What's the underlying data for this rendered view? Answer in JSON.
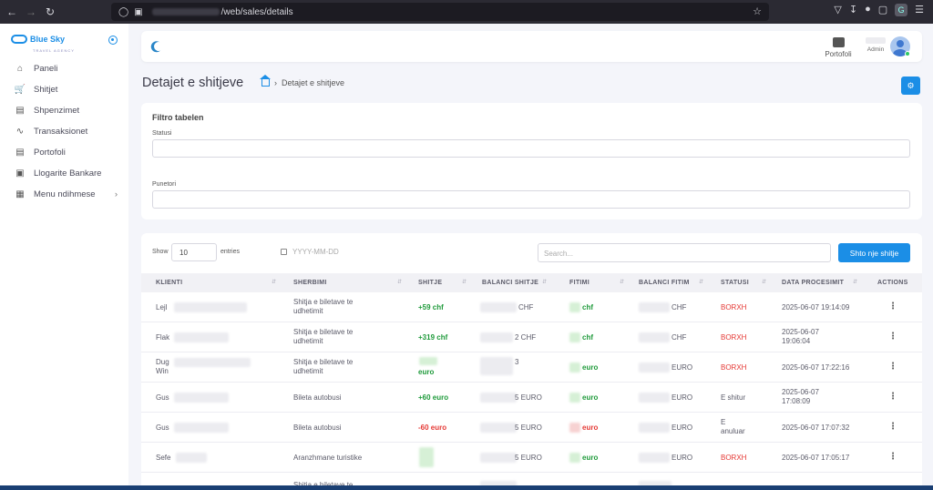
{
  "browser": {
    "url_path": "/web/sales/details",
    "account_initial": "G"
  },
  "sidebar": {
    "brand": "Blue Sky",
    "brand_sub": "TRAVEL AGENCY",
    "items": [
      {
        "label": "Paneli",
        "icon": "home-icon"
      },
      {
        "label": "Shitjet",
        "icon": "cart-icon"
      },
      {
        "label": "Shpenzimet",
        "icon": "bag-icon"
      },
      {
        "label": "Transaksionet",
        "icon": "activity-icon"
      },
      {
        "label": "Portofoli",
        "icon": "bag-icon"
      },
      {
        "label": "Llogarite Bankare",
        "icon": "bank-icon"
      },
      {
        "label": "Menu ndihmese",
        "icon": "file-icon",
        "has_submenu": true
      }
    ]
  },
  "header": {
    "wallet_label": "Portofoli",
    "user_role": "Admin"
  },
  "page": {
    "title": "Detajet e shitjeve",
    "breadcrumb": "Detajet e shitjeve"
  },
  "filter": {
    "title": "Filtro tabelen",
    "status_label": "Statusi",
    "worker_label": "Punetori"
  },
  "table": {
    "show_label": "Show",
    "show_value": "10",
    "entries_label": "entries",
    "date_placeholder": "YYYY-MM-DD",
    "search_placeholder": "Search...",
    "add_button": "Shto nje shitje",
    "columns": [
      "KLIENTI",
      "SHERBIMI",
      "SHITJE",
      "BALANCI SHITJE",
      "FITIMI",
      "BALANCI FITIM",
      "STATUSI",
      "DATA PROCESIMIT",
      "ACTIONS"
    ],
    "rows": [
      {
        "client": "Lejl",
        "service": "Shitja e biletave te udhetimit",
        "sale": "+59 chf",
        "sale_type": "green",
        "balance": "CHF",
        "profit": "chf",
        "profit_type": "green",
        "profit_balance": "CHF",
        "status": "BORXH",
        "status_type": "red",
        "date": "2025-06-07 19:14:09"
      },
      {
        "client": "Flak",
        "service": "Shitja e biletave te udhetimit",
        "sale": "+319 chf",
        "sale_type": "green",
        "balance": "2 CHF",
        "profit": "chf",
        "profit_type": "green",
        "profit_balance": "CHF",
        "status": "BORXH",
        "status_type": "red",
        "date": "2025-06-07 19:06:04"
      },
      {
        "client": "Dug Win",
        "service": "Shitja e biletave te udhetimit",
        "sale": "euro",
        "sale_type": "green",
        "balance": "3",
        "profit": "euro",
        "profit_type": "green",
        "profit_balance": "EURO",
        "status": "BORXH",
        "status_type": "red",
        "date": "2025-06-07 17:22:16"
      },
      {
        "client": "Gus",
        "service": "Bileta autobusi",
        "sale": "+60 euro",
        "sale_type": "green",
        "balance": "5 EURO",
        "profit": "euro",
        "profit_type": "green",
        "profit_balance": "EURO",
        "status": "E shitur",
        "status_type": "plain",
        "date": "2025-06-07 17:08:09"
      },
      {
        "client": "Gus",
        "service": "Bileta autobusi",
        "sale": "-60 euro",
        "sale_type": "red",
        "balance": "5 EURO",
        "profit": "euro",
        "profit_type": "red",
        "profit_balance": "EURO",
        "status": "E anuluar",
        "status_type": "plain",
        "date": "2025-06-07 17:07:32"
      },
      {
        "client": "Sefe",
        "service": "Aranzhmane turistike",
        "sale": "",
        "sale_type": "green",
        "balance": "5 EURO",
        "profit": "euro",
        "profit_type": "green",
        "profit_balance": "EURO",
        "status": "BORXH",
        "status_type": "red",
        "date": "2025-06-07 17:05:17"
      },
      {
        "client": "",
        "service": "Shitja e biletave te",
        "sale": "",
        "sale_type": "green",
        "balance": "",
        "profit": "",
        "profit_type": "green",
        "profit_balance": "",
        "status": "",
        "status_type": "plain",
        "date": ""
      }
    ]
  }
}
